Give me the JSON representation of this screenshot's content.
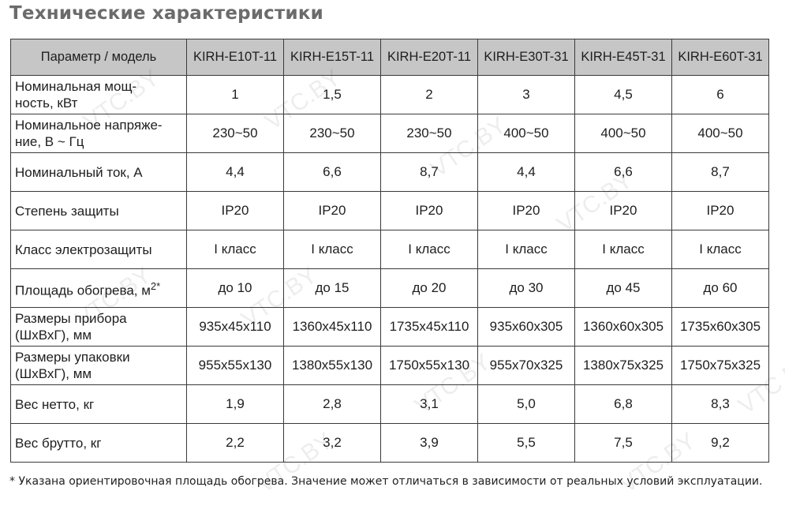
{
  "title": "Технические характеристики",
  "header": [
    "Параметр / модель",
    "KIRH-E10T-11",
    "KIRH-E15T-11",
    "KIRH-E20T-11",
    "KIRH-E30T-31",
    "KIRH-E45T-31",
    "KIRH-E60T-31"
  ],
  "rows": [
    {
      "label": "Номинальная мощ-\nность, кВт",
      "values": [
        "1",
        "1,5",
        "2",
        "3",
        "4,5",
        "6"
      ]
    },
    {
      "label": "Номинальное напряже-\nние, В ~ Гц",
      "values": [
        "230~50",
        "230~50",
        "230~50",
        "400~50",
        "400~50",
        "400~50"
      ]
    },
    {
      "label": "Номинальный ток, А",
      "values": [
        "4,4",
        "6,6",
        "8,7",
        "4,4",
        "6,6",
        "8,7"
      ]
    },
    {
      "label": "Степень защиты",
      "values": [
        "IP20",
        "IP20",
        "IP20",
        "IP20",
        "IP20",
        "IP20"
      ]
    },
    {
      "label": "Класс электрозащиты",
      "values": [
        "I класс",
        "I класс",
        "I класс",
        "I класс",
        "I класс",
        "I класс"
      ]
    },
    {
      "label": "Площадь обогрева, м",
      "sup": "2*",
      "values": [
        "до 10",
        "до 15",
        "до 20",
        "до 30",
        "до 45",
        "до 60"
      ]
    },
    {
      "label": "Размеры прибора\n(ШхВхГ), мм",
      "values": [
        "935x45x110",
        "1360x45x110",
        "1735x45x110",
        "935x60x305",
        "1360x60x305",
        "1735x60x305"
      ]
    },
    {
      "label": "Размеры упаковки\n(ШхВхГ), мм",
      "values": [
        "955x55x130",
        "1380x55x130",
        "1750x55x130",
        "955x70x325",
        "1380x75x325",
        "1750x75x325"
      ]
    },
    {
      "label": "Вес нетто, кг",
      "values": [
        "1,9",
        "2,8",
        "3,1",
        "5,0",
        "6,8",
        "8,3"
      ]
    },
    {
      "label": "Вес брутто, кг",
      "values": [
        "2,2",
        "3,2",
        "3,9",
        "5,5",
        "7,5",
        "9,2"
      ]
    }
  ],
  "footnote": "* Указана ориентировочная площадь обогрева. Значение может отличаться в зависимости от реальных условий эксплуатации.",
  "watermark": "VTC.BY"
}
